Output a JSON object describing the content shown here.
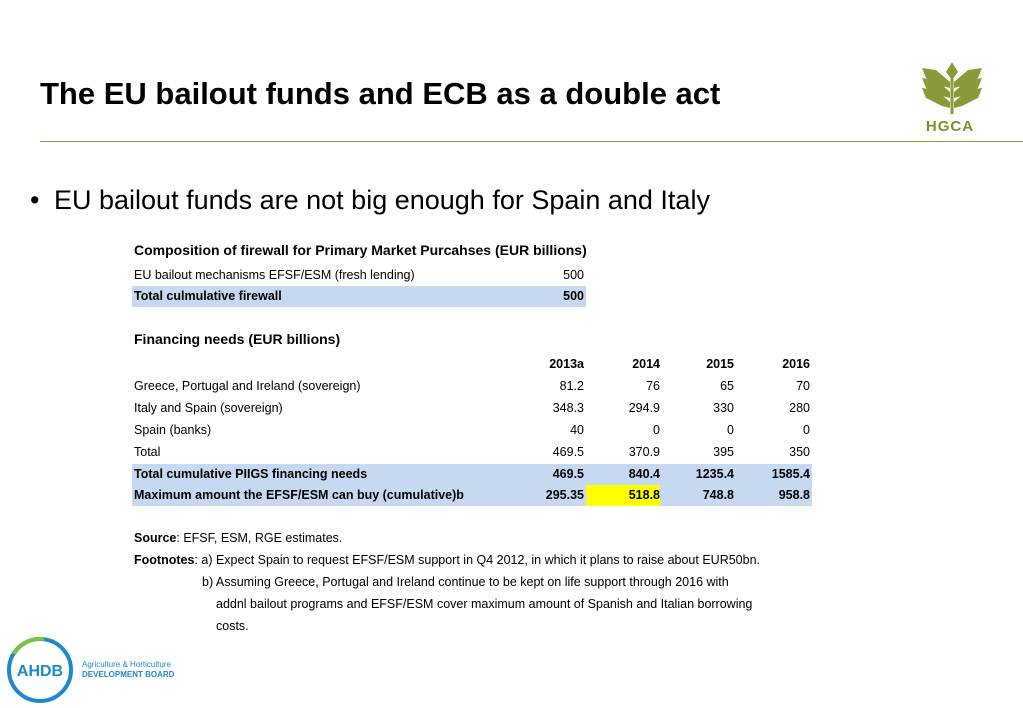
{
  "slide": {
    "title": "The EU bailout funds and ECB as a double act",
    "bullet": "EU bailout funds are not big enough for Spain and Italy",
    "logo_top": "HGCA",
    "logo_bottom": {
      "name": "AHDB",
      "line1": "Agriculture & Horticulture",
      "line2": "DEVELOPMENT BOARD"
    }
  },
  "firewall": {
    "title": "Composition of firewall for Primary Market Purcahses (EUR billions)",
    "rows": [
      {
        "label": "EU bailout mechanisms EFSF/ESM (fresh lending)",
        "value": "500"
      },
      {
        "label": "Total culmulative firewall",
        "value": "500"
      }
    ]
  },
  "financing": {
    "title": "Financing needs (EUR billions)",
    "headers": [
      "2013a",
      "2014",
      "2015",
      "2016"
    ],
    "rows": [
      {
        "label": "Greece, Portugal and Ireland (sovereign)",
        "values": [
          "81.2",
          "76",
          "65",
          "70"
        ]
      },
      {
        "label": "Italy and Spain (sovereign)",
        "values": [
          "348.3",
          "294.9",
          "330",
          "280"
        ]
      },
      {
        "label": "Spain (banks)",
        "values": [
          "40",
          "0",
          "0",
          "0"
        ]
      },
      {
        "label": "Total",
        "values": [
          "469.5",
          "370.9",
          "395",
          "350"
        ]
      },
      {
        "label": "Total cumulative PIIGS financing needs",
        "values": [
          "469.5",
          "840.4",
          "1235.4",
          "1585.4"
        ]
      },
      {
        "label": "Maximum amount the EFSF/ESM can buy (cumulative)b",
        "values": [
          "295.35",
          "518.8",
          "748.8",
          "958.8"
        ]
      }
    ]
  },
  "notes": {
    "source_label": "Source",
    "source_text": ": EFSF, ESM, RGE estimates.",
    "footnotes_label": "Footnotes",
    "footnote_a": ": a) Expect Spain to request EFSF/ESM support in Q4 2012, in which it plans to raise about EUR50bn.",
    "footnote_b1": "b) Assuming Greece, Portugal and Ireland continue to be kept on life support through 2016 with",
    "footnote_b2": "addnl bailout programs and EFSF/ESM cover maximum amount of Spanish and Italian borrowing",
    "footnote_b3": "costs."
  },
  "colors": {
    "highlight_blue": "#c6d9f1",
    "highlight_yellow": "#ffff00",
    "rule_green": "#8a9a3a",
    "logo_green": "#7d8f2a",
    "ahdb_blue": "#1e88c8"
  }
}
